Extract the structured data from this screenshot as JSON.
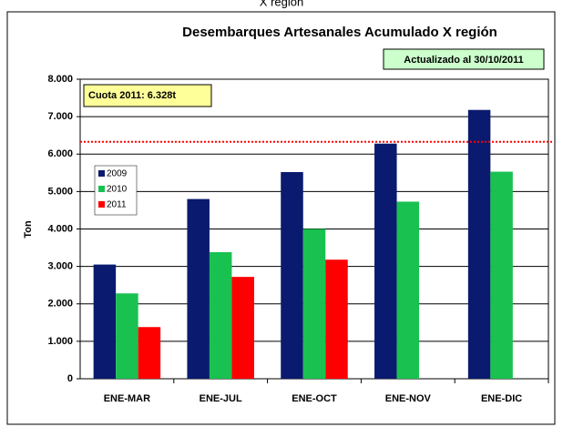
{
  "chart_data": {
    "type": "bar",
    "supertitle": "X región",
    "title": "Desembarques Artesanales Acumulado X región",
    "update_note": "Actualizado al 30/10/2011",
    "y_label": "Ton",
    "categories": [
      "ENE-MAR",
      "ENE-JUL",
      "ENE-OCT",
      "ENE-NOV",
      "ENE-DIC"
    ],
    "series": [
      {
        "name": "2009",
        "color": "#0a1a6e",
        "values": [
          3050,
          4800,
          5520,
          6280,
          7180
        ]
      },
      {
        "name": "2010",
        "color": "#19c150",
        "values": [
          2280,
          3380,
          4000,
          4730,
          5530
        ]
      },
      {
        "name": "2011",
        "color": "#ff0000",
        "values": [
          1380,
          2720,
          3180,
          null,
          null
        ]
      }
    ],
    "reference_line": {
      "value": 6328,
      "label": "Cuota 2011: 6.328t",
      "color": "#ff0000"
    },
    "ylim": [
      0,
      8000
    ],
    "yticks": [
      0,
      {
        "value": 1000,
        "label": "1.000"
      },
      {
        "value": 2000,
        "label": "2.000"
      },
      {
        "value": 3000,
        "label": "3.000"
      },
      {
        "value": 4000,
        "label": "4.000"
      },
      {
        "value": 5000,
        "label": "5.000"
      },
      {
        "value": 6000,
        "label": "6.000"
      },
      {
        "value": 7000,
        "label": "7.000"
      },
      {
        "value": 8000,
        "label": "8.000"
      }
    ],
    "grid": true,
    "legend": "left"
  }
}
